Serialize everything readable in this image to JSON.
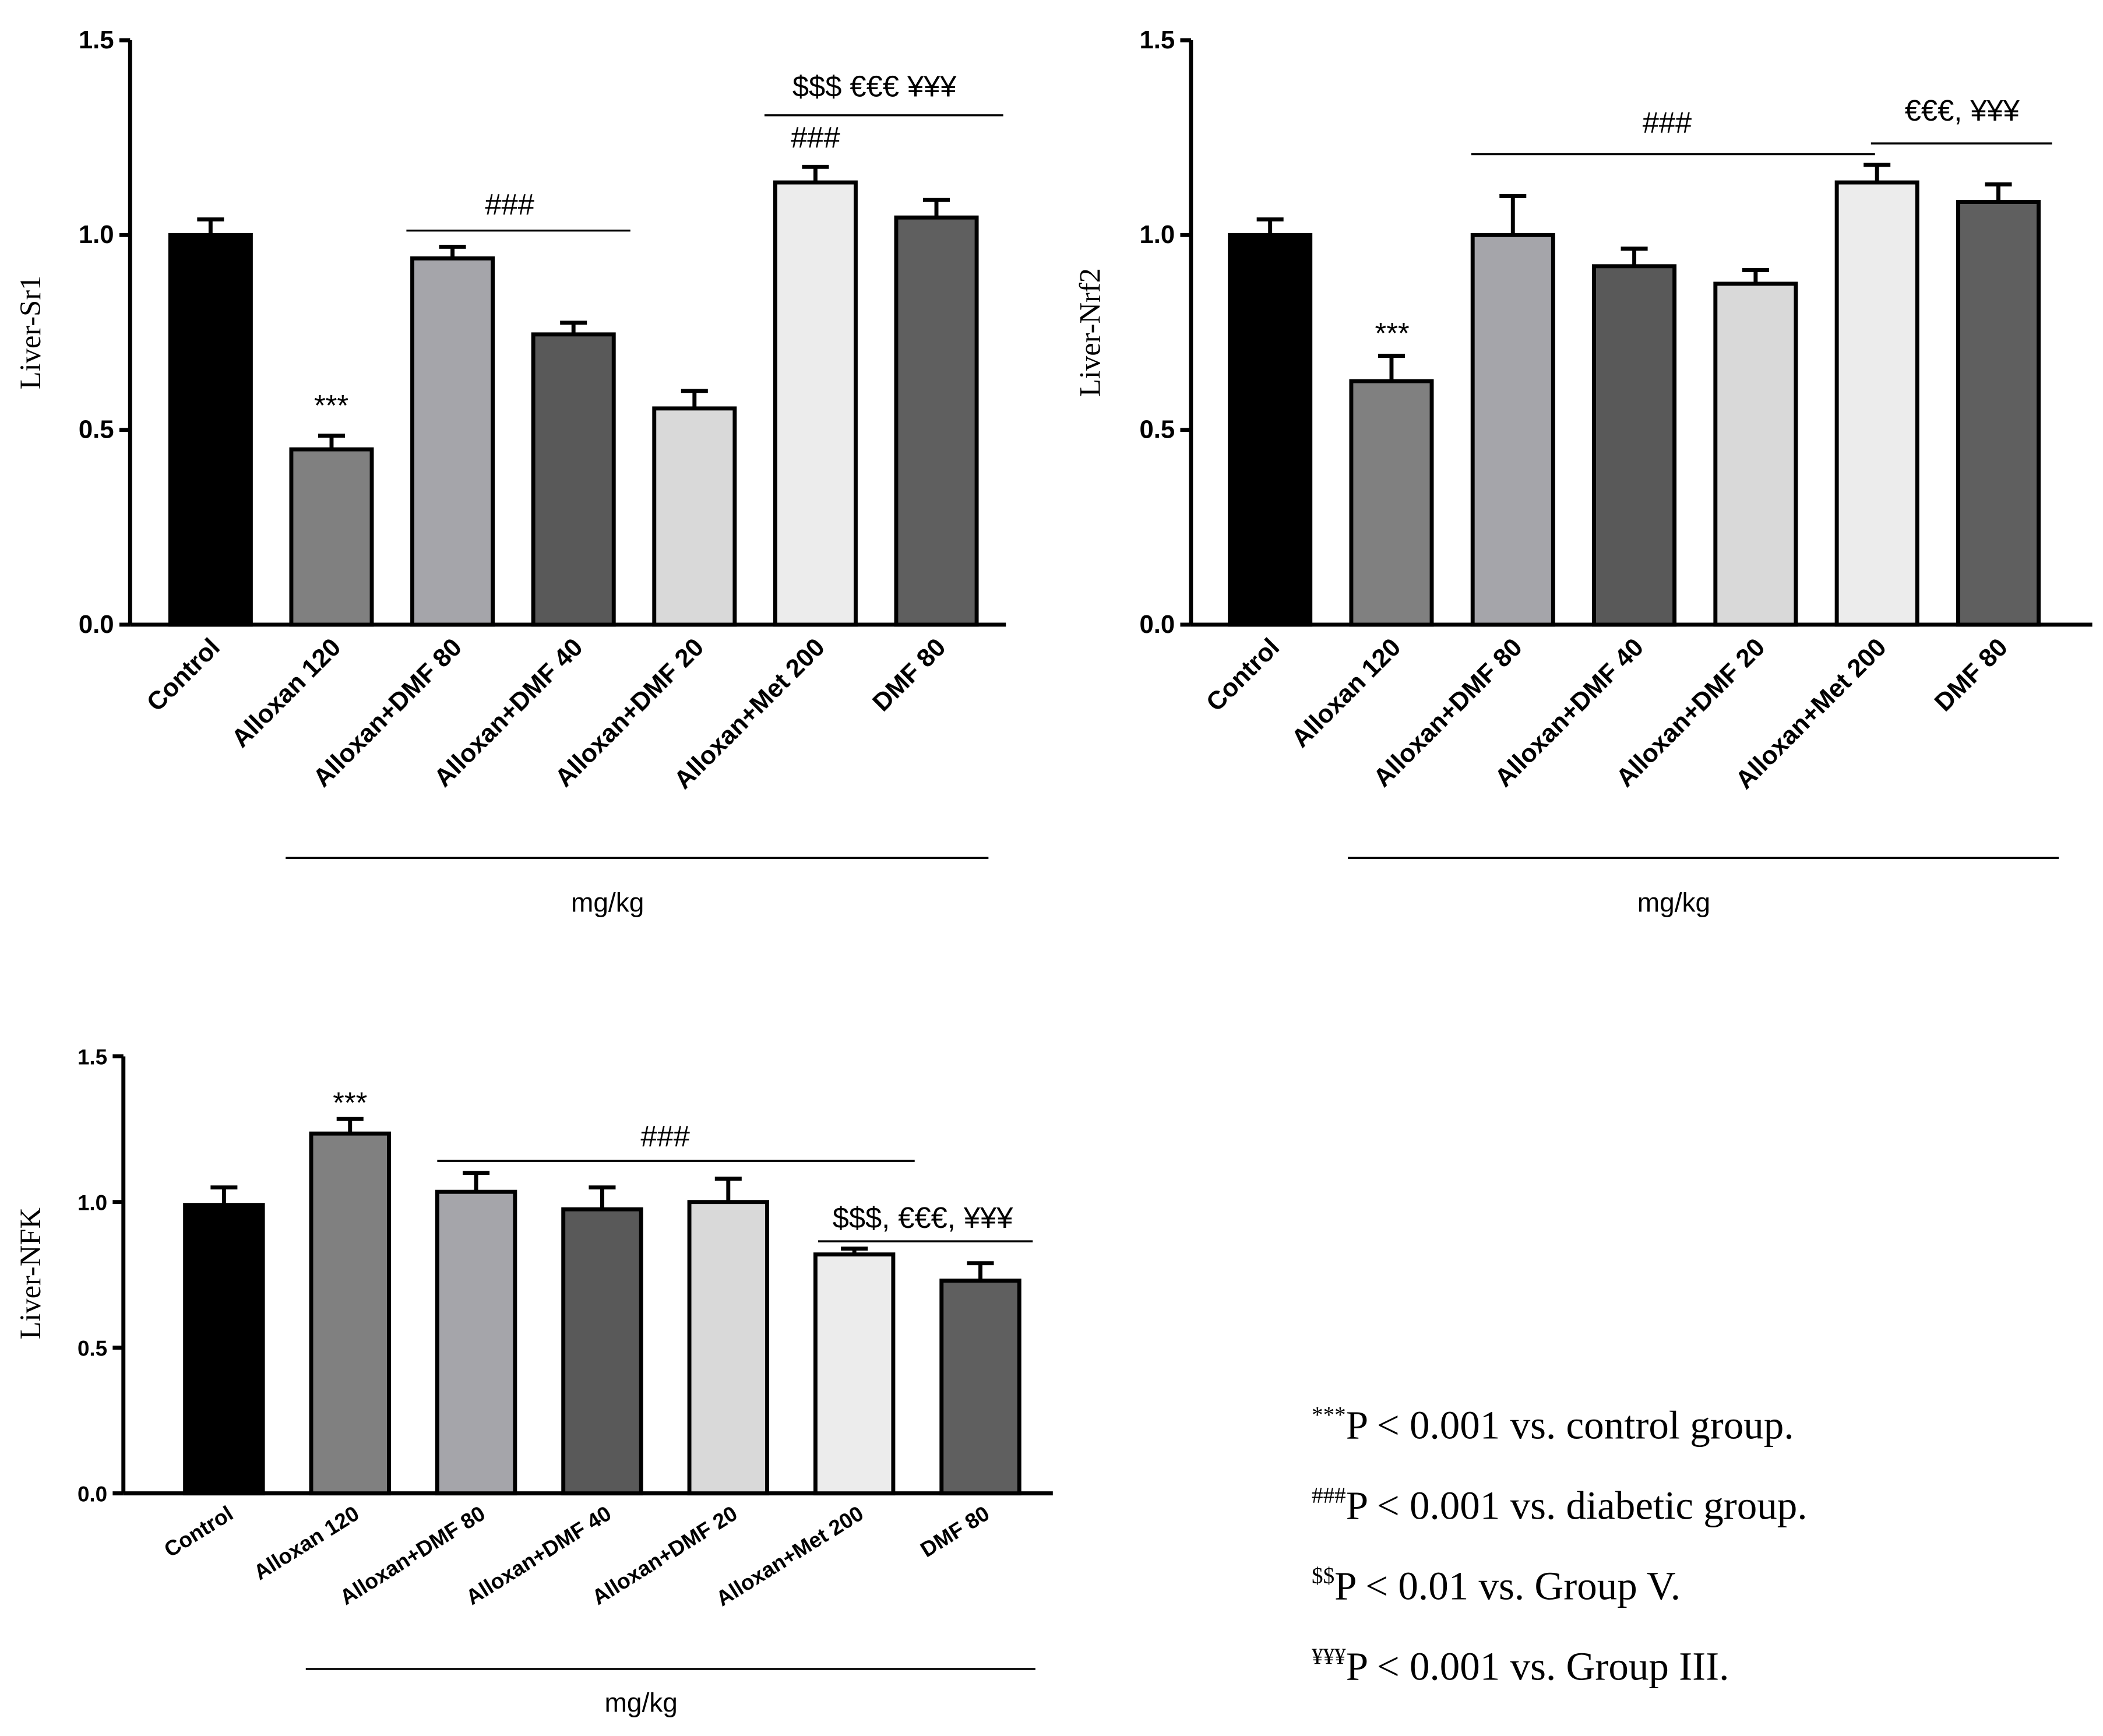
{
  "chart_data": [
    {
      "type": "bar",
      "ylabel": "Liver-Sr1",
      "xlabel": "mg/kg",
      "categories": [
        "Control",
        "Alloxan 120",
        "Alloxan+DMF 80",
        "Alloxan+DMF 40",
        "Alloxan+DMF 20",
        "Alloxan+Met 200",
        "DMF 80"
      ],
      "values": [
        1.0,
        0.45,
        0.94,
        0.745,
        0.555,
        1.135,
        1.045
      ],
      "errors": [
        0.04,
        0.035,
        0.03,
        0.03,
        0.045,
        0.04,
        0.045
      ],
      "colors": [
        "#000000",
        "#808080",
        "#a5a5aa",
        "#595959",
        "#d9d9d9",
        "#ececec",
        "#5f5f5f"
      ],
      "ylim": [
        0,
        1.5
      ],
      "yticks": [
        {
          "value": 0,
          "label": "0.0"
        },
        0.5,
        {
          "value": 1,
          "label": "1.0"
        },
        1.5
      ],
      "annotations": [
        "***",
        "###",
        "###",
        "$$$ €€€ ¥¥¥"
      ]
    },
    {
      "type": "bar",
      "ylabel": "Liver-Nrf2",
      "xlabel": "mg/kg",
      "categories": [
        "Control",
        "Alloxan 120",
        "Alloxan+DMF 80",
        "Alloxan+DMF 40",
        "Alloxan+DMF 20",
        "Alloxan+Met 200",
        "DMF 80"
      ],
      "values": [
        1.0,
        0.625,
        1.0,
        0.92,
        0.875,
        1.135,
        1.085
      ],
      "errors": [
        0.04,
        0.065,
        0.1,
        0.045,
        0.035,
        0.045,
        0.045
      ],
      "colors": [
        "#000000",
        "#808080",
        "#a5a5aa",
        "#595959",
        "#d9d9d9",
        "#ececec",
        "#5f5f5f"
      ],
      "ylim": [
        0,
        1.5
      ],
      "yticks": [
        {
          "value": 0,
          "label": "0.0"
        },
        0.5,
        {
          "value": 1,
          "label": "1.0"
        },
        1.5
      ],
      "annotations": [
        "***",
        "###",
        "€€€, ¥¥¥"
      ]
    },
    {
      "type": "bar",
      "ylabel": "Liver-NFK",
      "xlabel": "mg/kg",
      "categories": [
        "Control",
        "Alloxan 120",
        "Alloxan+DMF 80",
        "Alloxan+DMF 40",
        "Alloxan+DMF 20",
        "Alloxan+Met 200",
        "DMF 80"
      ],
      "values": [
        0.99,
        1.235,
        1.035,
        0.975,
        1.0,
        0.82,
        0.73
      ],
      "errors": [
        0.06,
        0.05,
        0.065,
        0.075,
        0.08,
        0.02,
        0.06
      ],
      "colors": [
        "#000000",
        "#808080",
        "#a5a5aa",
        "#595959",
        "#d9d9d9",
        "#ececec",
        "#5f5f5f"
      ],
      "ylim": [
        0,
        1.5
      ],
      "yticks": [
        {
          "value": 0,
          "label": "0.0"
        },
        0.5,
        {
          "value": 1,
          "label": "1.0"
        },
        1.5
      ],
      "annotations": [
        "***",
        "###",
        "$$$, €€€, ¥¥¥"
      ]
    }
  ],
  "notes": [
    {
      "mark": "***",
      "text": "P < 0.001 vs. control group."
    },
    {
      "mark": "###",
      "text": "P < 0.001 vs. diabetic group."
    },
    {
      "mark": "$$",
      "text": "P < 0.01 vs. Group V."
    },
    {
      "mark": "¥¥¥",
      "text": "P < 0.001 vs. Group III."
    }
  ]
}
